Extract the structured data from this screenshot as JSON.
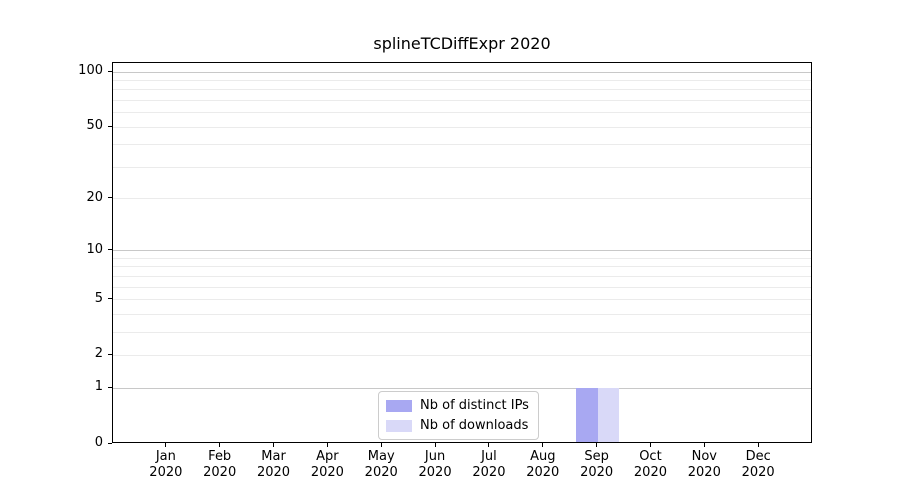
{
  "chart_data": {
    "type": "bar",
    "title": "splineTCDiffExpr 2020",
    "x_categories": [
      "Jan",
      "Feb",
      "Mar",
      "Apr",
      "May",
      "Jun",
      "Jul",
      "Aug",
      "Sep",
      "Oct",
      "Nov",
      "Dec"
    ],
    "x_year": "2020",
    "series": [
      {
        "name": "Nb of distinct IPs",
        "color": "#a8a8f2",
        "values": [
          0,
          0,
          0,
          0,
          0,
          0,
          0,
          0,
          1,
          0,
          0,
          0
        ]
      },
      {
        "name": "Nb of downloads",
        "color": "#d9d9f8",
        "values": [
          0,
          0,
          0,
          0,
          0,
          0,
          0,
          0,
          1,
          0,
          0,
          0
        ]
      }
    ],
    "y_scale": "log10(v+1)",
    "y_ticks": [
      0,
      1,
      2,
      5,
      10,
      20,
      50,
      100
    ],
    "ylim": [
      0,
      112
    ],
    "grid": {
      "major_values": [
        1,
        10,
        100
      ],
      "minor_values": [
        2,
        3,
        4,
        5,
        6,
        7,
        8,
        9,
        20,
        30,
        40,
        50,
        60,
        70,
        80,
        90
      ],
      "major_color": "#c8c8c8",
      "minor_color": "#ebebeb"
    },
    "legend": {
      "position": "bottom-center",
      "entries": [
        "Nb of distinct IPs",
        "Nb of downloads"
      ]
    }
  }
}
